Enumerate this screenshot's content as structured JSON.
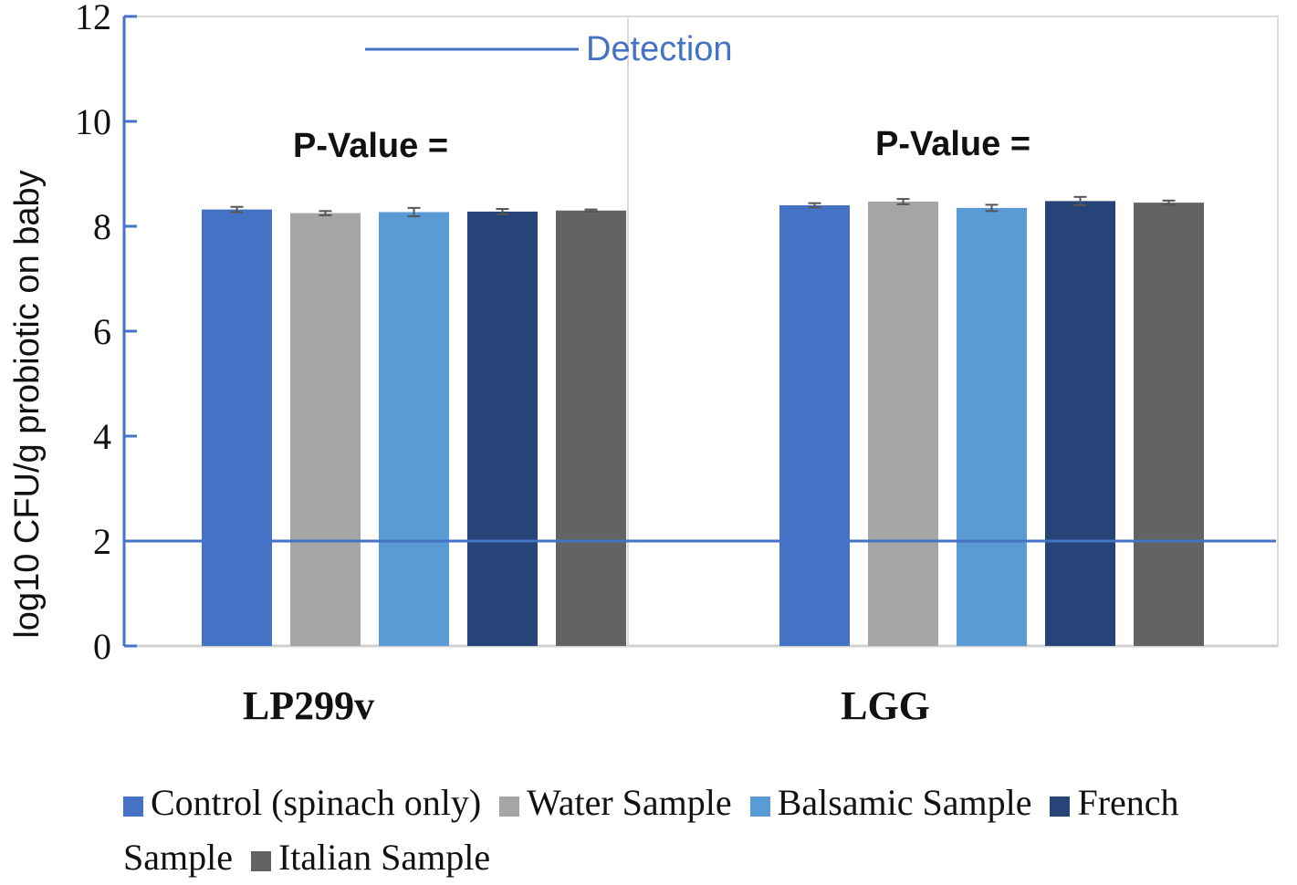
{
  "chart_data": {
    "type": "bar",
    "title": "",
    "ylabel": "log10 CFU/g probiotic on baby",
    "xlabel": "",
    "ylim": [
      0,
      12
    ],
    "yticks": [
      0,
      2,
      4,
      6,
      8,
      10,
      12
    ],
    "categories": [
      "LP299v",
      "LGG"
    ],
    "series": [
      {
        "name": "Control (spinach only)",
        "color": "#4472C4",
        "values": [
          8.32,
          8.4
        ],
        "errors": [
          0.05,
          0.04
        ]
      },
      {
        "name": "Water Sample",
        "color": "#A5A5A5",
        "values": [
          8.25,
          8.47
        ],
        "errors": [
          0.04,
          0.05
        ]
      },
      {
        "name": "Balsamic Sample",
        "color": "#5B9BD5",
        "values": [
          8.27,
          8.35
        ],
        "errors": [
          0.08,
          0.06
        ]
      },
      {
        "name": "French Sample",
        "color": "#264478",
        "values": [
          8.28,
          8.48
        ],
        "errors": [
          0.05,
          0.08
        ]
      },
      {
        "name": "Italian Sample",
        "color": "#636363",
        "values": [
          8.3,
          8.45
        ],
        "errors": [
          0.02,
          0.04
        ]
      }
    ],
    "detection_line": {
      "label": "Detection",
      "value": 2,
      "color": "#4472C4"
    },
    "annotations": [
      {
        "text": "P-Value =",
        "group": "LP299v"
      },
      {
        "text": "P-Value =",
        "group": "LGG"
      }
    ],
    "legend_position": "bottom"
  }
}
